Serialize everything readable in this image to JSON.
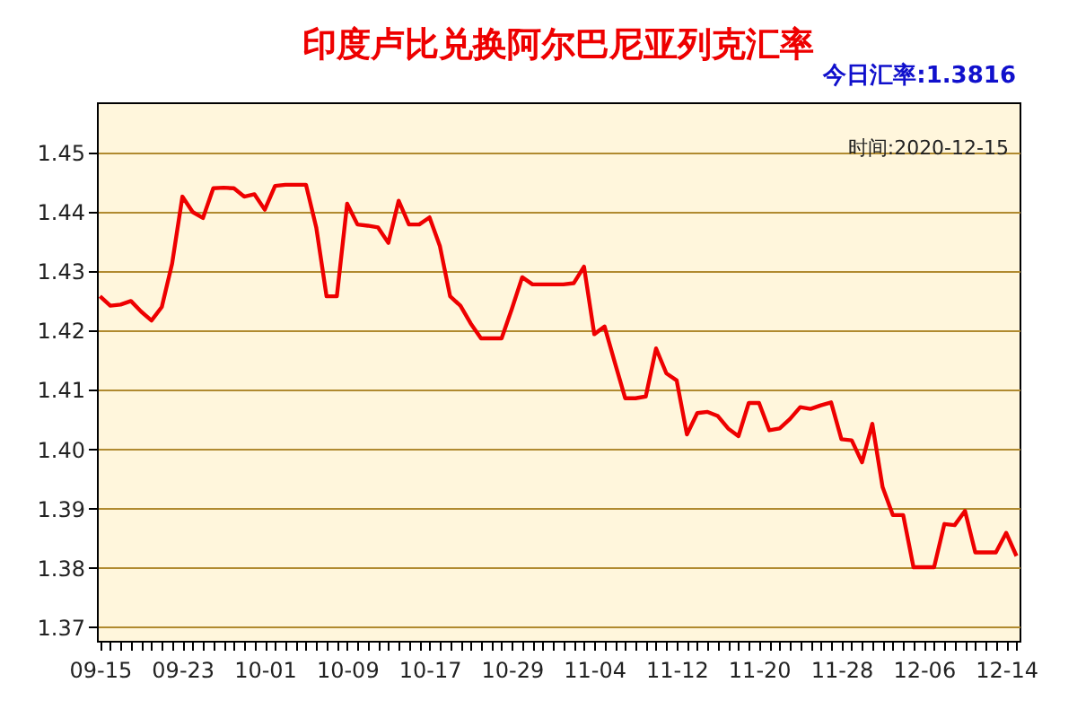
{
  "chart_data": {
    "type": "line",
    "title": "印度卢比兑换阿尔巴尼亚列克汇率",
    "subtitle": "今日汇率:1.3816",
    "annotations": [
      "时间:2020-12-15"
    ],
    "categories": [
      "09-15",
      null,
      null,
      null,
      null,
      null,
      null,
      null,
      "09-23",
      null,
      null,
      null,
      null,
      null,
      null,
      null,
      "10-01",
      null,
      null,
      null,
      null,
      null,
      null,
      null,
      "10-09",
      null,
      null,
      null,
      null,
      null,
      null,
      null,
      "10-17",
      null,
      null,
      null,
      null,
      null,
      null,
      null,
      "10-29",
      null,
      null,
      null,
      null,
      null,
      null,
      null,
      "11-04",
      null,
      null,
      null,
      null,
      null,
      null,
      null,
      "11-12",
      null,
      null,
      null,
      null,
      null,
      null,
      null,
      "11-20",
      null,
      null,
      null,
      null,
      null,
      null,
      null,
      "11-28",
      null,
      null,
      null,
      null,
      null,
      null,
      null,
      "12-06",
      null,
      null,
      null,
      null,
      null,
      null,
      null,
      "12-14",
      null
    ],
    "series": [
      {
        "color": "#ee0000",
        "values": [
          1.4258,
          1.4242,
          1.4244,
          1.425,
          1.4232,
          1.4217,
          1.424,
          1.4313,
          1.4426,
          1.44,
          1.439,
          1.444,
          1.4441,
          1.444,
          1.4426,
          1.443,
          1.4404,
          1.4444,
          1.4446,
          1.4446,
          1.4446,
          1.4374,
          1.4258,
          1.4258,
          1.4414,
          1.4379,
          1.4377,
          1.4374,
          1.4348,
          1.4419,
          1.4379,
          1.4379,
          1.4391,
          1.4343,
          1.4258,
          1.4242,
          1.4212,
          1.4187,
          1.4187,
          1.4187,
          1.4237,
          1.429,
          1.4278,
          1.4278,
          1.4278,
          1.4278,
          1.428,
          1.4308,
          1.4194,
          1.4207,
          1.4146,
          1.4086,
          1.4086,
          1.4089,
          1.417,
          1.4128,
          1.4116,
          1.4025,
          1.4061,
          1.4063,
          1.4056,
          1.4035,
          1.4022,
          1.4078,
          1.4078,
          1.4032,
          1.4035,
          1.4051,
          1.4071,
          1.4068,
          1.4074,
          1.4079,
          1.4017,
          1.4015,
          1.3978,
          1.4043,
          1.3936,
          1.3889,
          1.3889,
          1.3801,
          1.3801,
          1.3801,
          1.3874,
          1.3872,
          1.3896,
          1.3826,
          1.3826,
          1.3826,
          1.3859,
          1.382
        ]
      }
    ],
    "ylim": [
      1.3677,
      1.4585
    ],
    "yticks": [
      1.37,
      1.38,
      1.39,
      {
        "value": 1.4,
        "label": "1.40"
      },
      1.41,
      1.42,
      1.43,
      1.44,
      1.45
    ],
    "grid": "y"
  }
}
